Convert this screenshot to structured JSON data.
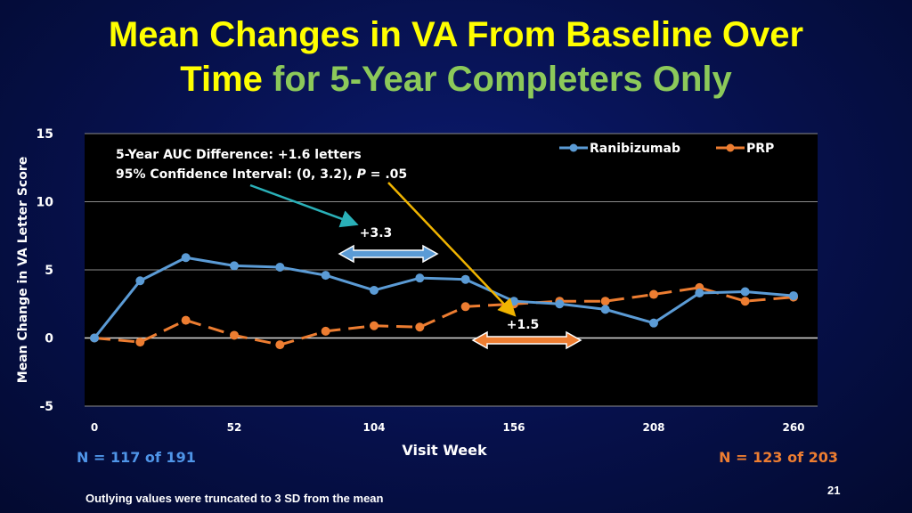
{
  "title": {
    "part1": "Mean Changes in VA From Baseline Over",
    "part2": "Time",
    "part3": "for 5-Year Completers Only"
  },
  "colors": {
    "title_yellow": "#ffff00",
    "title_green": "#8cc95a",
    "ranibizumab": "#5b9bd5",
    "prp": "#ed7d31",
    "cyan_arrow": "#2ab0b8",
    "gold_arrow": "#f0b400"
  },
  "chart_data": {
    "type": "line",
    "xlabel": "Visit Week",
    "ylabel": "Mean Change in VA Letter Score",
    "xlim": [
      0,
      260
    ],
    "ylim": [
      -5,
      15
    ],
    "x_ticks": [
      "0",
      "52",
      "104",
      "156",
      "208",
      "260"
    ],
    "y_ticks": [
      "15",
      "10",
      "5",
      "0",
      "-5"
    ],
    "grid": true,
    "legend_position": "top-right",
    "series": [
      {
        "name": "Ranibizumab",
        "style": "solid",
        "x": [
          0,
          17,
          34,
          52,
          69,
          86,
          104,
          121,
          138,
          156,
          173,
          190,
          208,
          225,
          242,
          260
        ],
        "values": [
          0,
          4.2,
          5.9,
          5.3,
          5.2,
          4.6,
          3.5,
          4.4,
          4.3,
          2.7,
          2.5,
          2.1,
          1.1,
          3.3,
          3.4,
          3.1
        ]
      },
      {
        "name": "PRP",
        "style": "dashed",
        "x": [
          0,
          17,
          34,
          52,
          69,
          86,
          104,
          121,
          138,
          156,
          173,
          190,
          208,
          225,
          242,
          260
        ],
        "values": [
          0,
          -0.3,
          1.3,
          0.2,
          -0.5,
          0.5,
          0.9,
          0.8,
          2.3,
          2.5,
          2.7,
          2.7,
          3.2,
          3.7,
          2.7,
          3.0
        ]
      }
    ],
    "annotations": {
      "auc_line1": "5-Year AUC Difference: +1.6 letters",
      "auc_line2_a": "95% Confidence Interval: (0, 3.2), ",
      "auc_line2_p": "P",
      "auc_line2_b": " = .05",
      "diff_early": "+3.3",
      "diff_late": "+1.5"
    }
  },
  "footer": {
    "n_ranibizumab": "N = 117 of 191",
    "n_prp": "N = 123 of 203",
    "footnote": "Outlying values were truncated to 3 SD from the mean",
    "slide_number": "21"
  }
}
